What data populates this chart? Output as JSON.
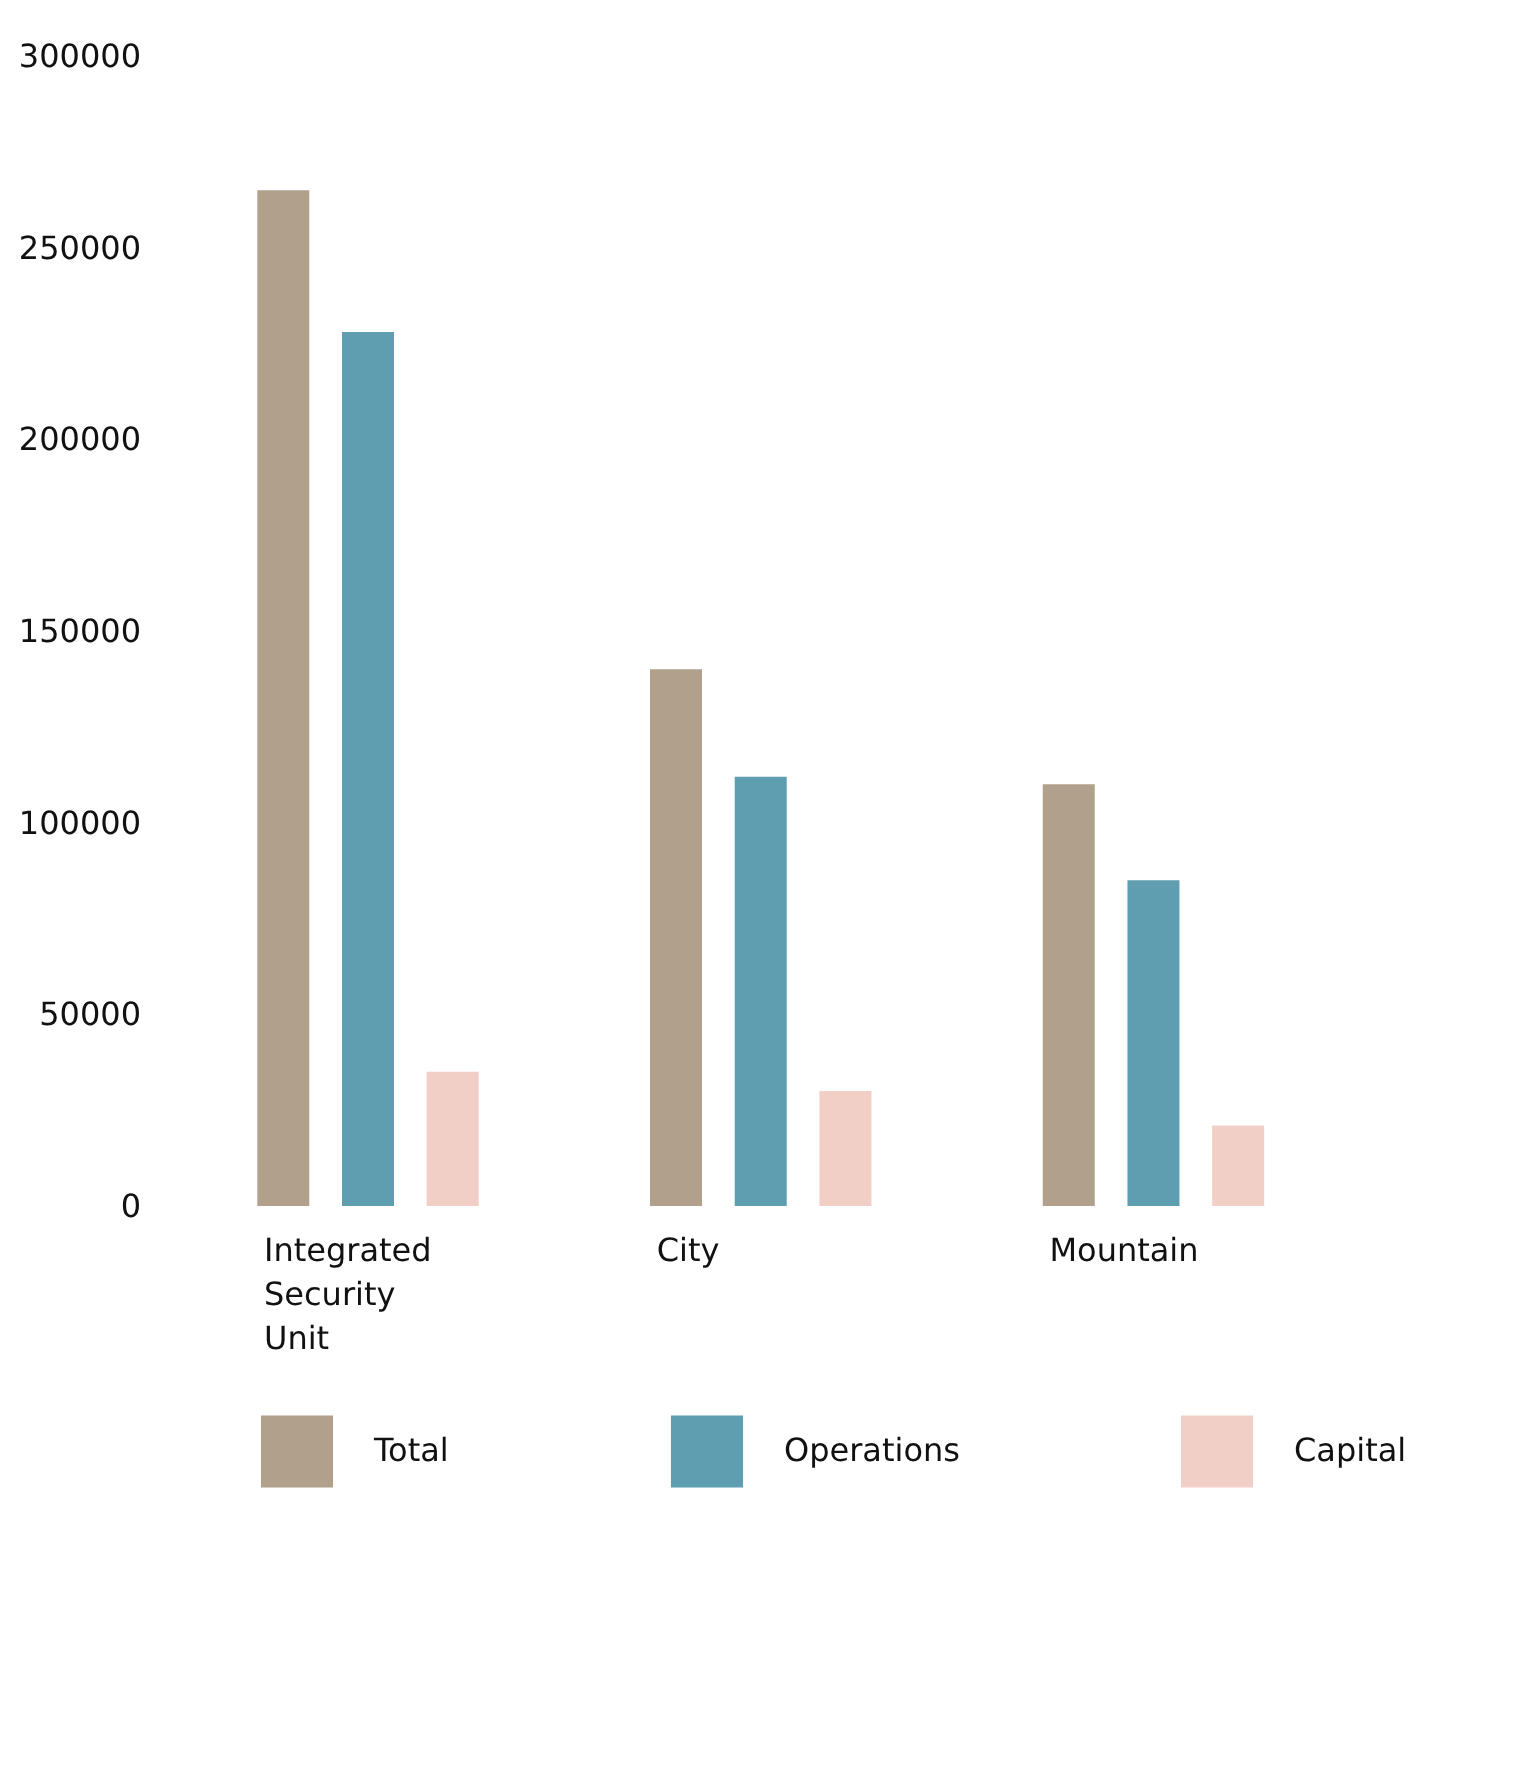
{
  "chart_data": {
    "type": "bar",
    "categories": [
      "Integrated Security Unit",
      "City",
      "Mountain"
    ],
    "series": [
      {
        "name": "Total",
        "color": "#b0a08c",
        "values": [
          265000,
          140000,
          110000
        ]
      },
      {
        "name": "Operations",
        "color": "#5f9db0",
        "values": [
          228000,
          112000,
          85000
        ]
      },
      {
        "name": "Capital",
        "color": "#f2cfc6",
        "values": [
          35000,
          30000,
          21000
        ]
      }
    ],
    "ylim": [
      0,
      300000
    ],
    "yticks": [
      0,
      50000,
      100000,
      150000,
      200000,
      250000,
      300000
    ],
    "grid": false,
    "legend": "bottom"
  }
}
